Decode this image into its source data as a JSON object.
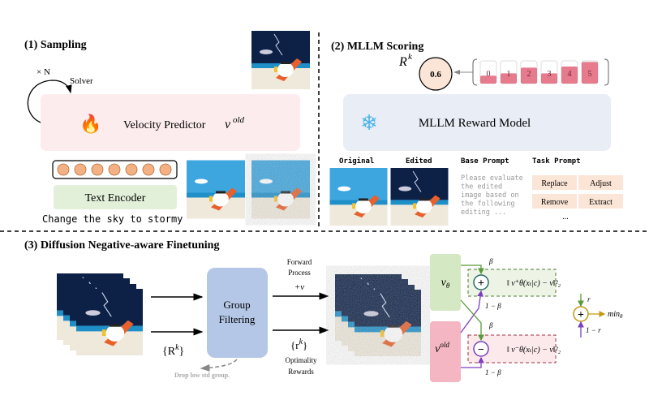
{
  "sampling": {
    "title": "(1) Sampling",
    "loop_label": "× N",
    "solver_label": "Solver",
    "velocity_predictor_label": "Velocity Predictor",
    "velocity_symbol": "ν",
    "velocity_superscript": "old",
    "text_encoder_label": "Text Encoder",
    "prompt_text": "Change the sky to stormy",
    "token_count": 7,
    "icons": [
      "fire-icon"
    ]
  },
  "scoring": {
    "title": "(2) MLLM Scoring",
    "reward_symbol": "R",
    "reward_superscript": "k",
    "reward_value": "0.6",
    "score_levels": [
      {
        "label": "0",
        "fill": 0.35
      },
      {
        "label": "1",
        "fill": 0.45
      },
      {
        "label": "2",
        "fill": 0.7
      },
      {
        "label": "3",
        "fill": 0.45
      },
      {
        "label": "4",
        "fill": 0.75
      },
      {
        "label": "5",
        "fill": 0.95
      }
    ],
    "reward_model_label": "MLLM Reward Model",
    "icons": [
      "snowflake-icon"
    ],
    "original_label": "Original",
    "edited_label": "Edited",
    "base_prompt_label": "Base Prompt",
    "base_prompt_lines": [
      "Please evaluate",
      "the edited",
      "image based on",
      "the following",
      "editing ..."
    ],
    "task_prompt_label": "Task Prompt",
    "task_prompts": [
      "Replace",
      "Adjust",
      "Remove",
      "Extract"
    ],
    "task_more": "..."
  },
  "finetuning": {
    "title": "(3) Diffusion Negative-aware Finetuning",
    "rewards_set": "{R",
    "rewards_set_sup": "k",
    "rewards_set_close": "}",
    "group_filtering_line1": "Group",
    "group_filtering_line2": "Filtering",
    "drop_label": "Drop low std group.",
    "forward_line1": "Forward",
    "forward_line2": "Process",
    "forward_noise": "+ν",
    "optimality_set": "{r",
    "optimality_set_sup": "k",
    "optimality_set_close": "}",
    "optimality_line1": "Optimality",
    "optimality_line2": "Rewards",
    "v_theta": "ν",
    "v_theta_sub": "θ",
    "v_old": "ν",
    "v_old_sup": "old",
    "beta": "β",
    "one_minus_beta": "1 − β",
    "pos_loss": "‖ ν⁺θ(xₜ|c) −  ν‖²₂",
    "neg_loss": "‖ ν⁻θ(xₜ|c) −  ν‖²₂",
    "r_label": "r",
    "one_minus_r": "1 − r",
    "objective": "min",
    "objective_sub": "θ"
  },
  "colors": {
    "velocity_box": "#fcecee",
    "text_encoder_box": "#e2f0d9",
    "token": "#f4b183",
    "reward_model_box": "#e9edf6",
    "reward_circle": "#fbe5d6",
    "score_bar": "#e05a72",
    "task_box": "#fbe5d6",
    "group_filtering": "#b4c7e7",
    "v_theta_box": "#d5e8c4",
    "v_old_box": "#f4b6c2",
    "green_arrow": "#5a9a3a",
    "purple_arrow": "#7a3fbf",
    "gold": "#c09a10"
  }
}
